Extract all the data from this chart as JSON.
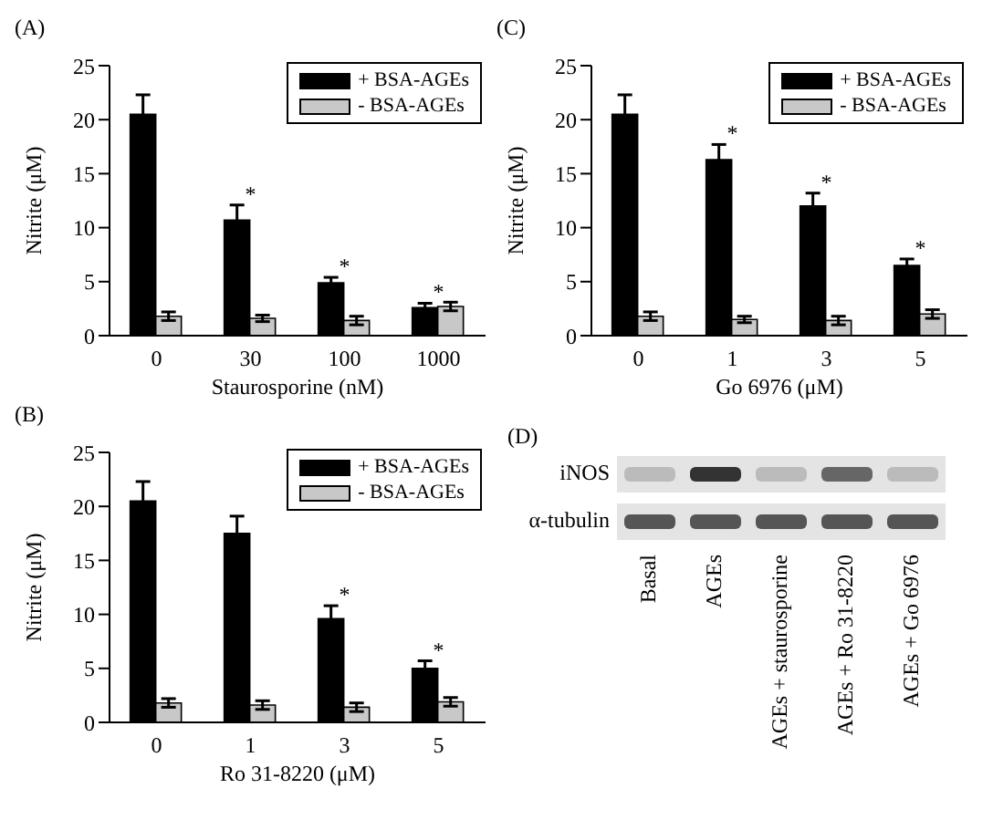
{
  "chart_data": [
    {
      "type": "bar",
      "title": "(A)",
      "xlabel": "Staurosporine (nM)",
      "ylabel": "Nitrite (μM)",
      "categories": [
        "0",
        "30",
        "100",
        "1000"
      ],
      "series": [
        {
          "name": "+ BSA-AGEs",
          "color": "#000000",
          "values": [
            20.5,
            10.7,
            4.9,
            2.6
          ],
          "errors": [
            1.8,
            1.4,
            0.5,
            0.4
          ]
        },
        {
          "name": "- BSA-AGEs",
          "color": "#c8c8c8",
          "values": [
            1.8,
            1.6,
            1.4,
            2.7
          ],
          "errors": [
            0.4,
            0.3,
            0.4,
            0.4
          ]
        }
      ],
      "ylim": [
        0,
        25
      ],
      "yticks": [
        0,
        5,
        10,
        15,
        20,
        25
      ],
      "legend": "top right",
      "annotations": [
        {
          "text": "*",
          "x": "30",
          "y": 10.7
        },
        {
          "text": "*",
          "x": "100",
          "y": 4.9
        },
        {
          "text": "*",
          "x": "1000",
          "y": 2.6
        }
      ]
    },
    {
      "type": "bar",
      "title": "(C)",
      "xlabel": "Go 6976 (μM)",
      "ylabel": "Nitrite (μM)",
      "categories": [
        "0",
        "1",
        "3",
        "5"
      ],
      "series": [
        {
          "name": "+ BSA-AGEs",
          "color": "#000000",
          "values": [
            20.5,
            16.3,
            12.0,
            6.5
          ],
          "errors": [
            1.8,
            1.4,
            1.2,
            0.6
          ]
        },
        {
          "name": "- BSA-AGEs",
          "color": "#c8c8c8",
          "values": [
            1.8,
            1.5,
            1.4,
            2.0
          ],
          "errors": [
            0.4,
            0.3,
            0.4,
            0.4
          ]
        }
      ],
      "ylim": [
        0,
        25
      ],
      "yticks": [
        0,
        5,
        10,
        15,
        20,
        25
      ],
      "legend": "top right",
      "annotations": [
        {
          "text": "*",
          "x": "1",
          "y": 16.3
        },
        {
          "text": "*",
          "x": "3",
          "y": 12.0
        },
        {
          "text": "*",
          "x": "5",
          "y": 6.5
        }
      ]
    },
    {
      "type": "bar",
      "title": "(B)",
      "xlabel": "Ro 31-8220 (μM)",
      "ylabel": "Nitrite (μM)",
      "categories": [
        "0",
        "1",
        "3",
        "5"
      ],
      "series": [
        {
          "name": "+ BSA-AGEs",
          "color": "#000000",
          "values": [
            20.5,
            17.5,
            9.6,
            5.0
          ],
          "errors": [
            1.8,
            1.6,
            1.2,
            0.7
          ]
        },
        {
          "name": "- BSA-AGEs",
          "color": "#c8c8c8",
          "values": [
            1.8,
            1.6,
            1.4,
            1.9
          ],
          "errors": [
            0.4,
            0.4,
            0.4,
            0.4
          ]
        }
      ],
      "ylim": [
        0,
        25
      ],
      "yticks": [
        0,
        5,
        10,
        15,
        20,
        25
      ],
      "legend": "top right",
      "annotations": [
        {
          "text": "*",
          "x": "3",
          "y": 9.6
        },
        {
          "text": "*",
          "x": "5",
          "y": 5.0
        }
      ]
    },
    {
      "type": "other",
      "title": "(D)",
      "categories": [
        "Basal",
        "AGEs",
        "AGEs + staurosporine",
        "AGEs + Ro 31-8220",
        "AGEs + Go 6976"
      ],
      "annotations": [
        "iNOS",
        "α-tubulin"
      ]
    }
  ]
}
